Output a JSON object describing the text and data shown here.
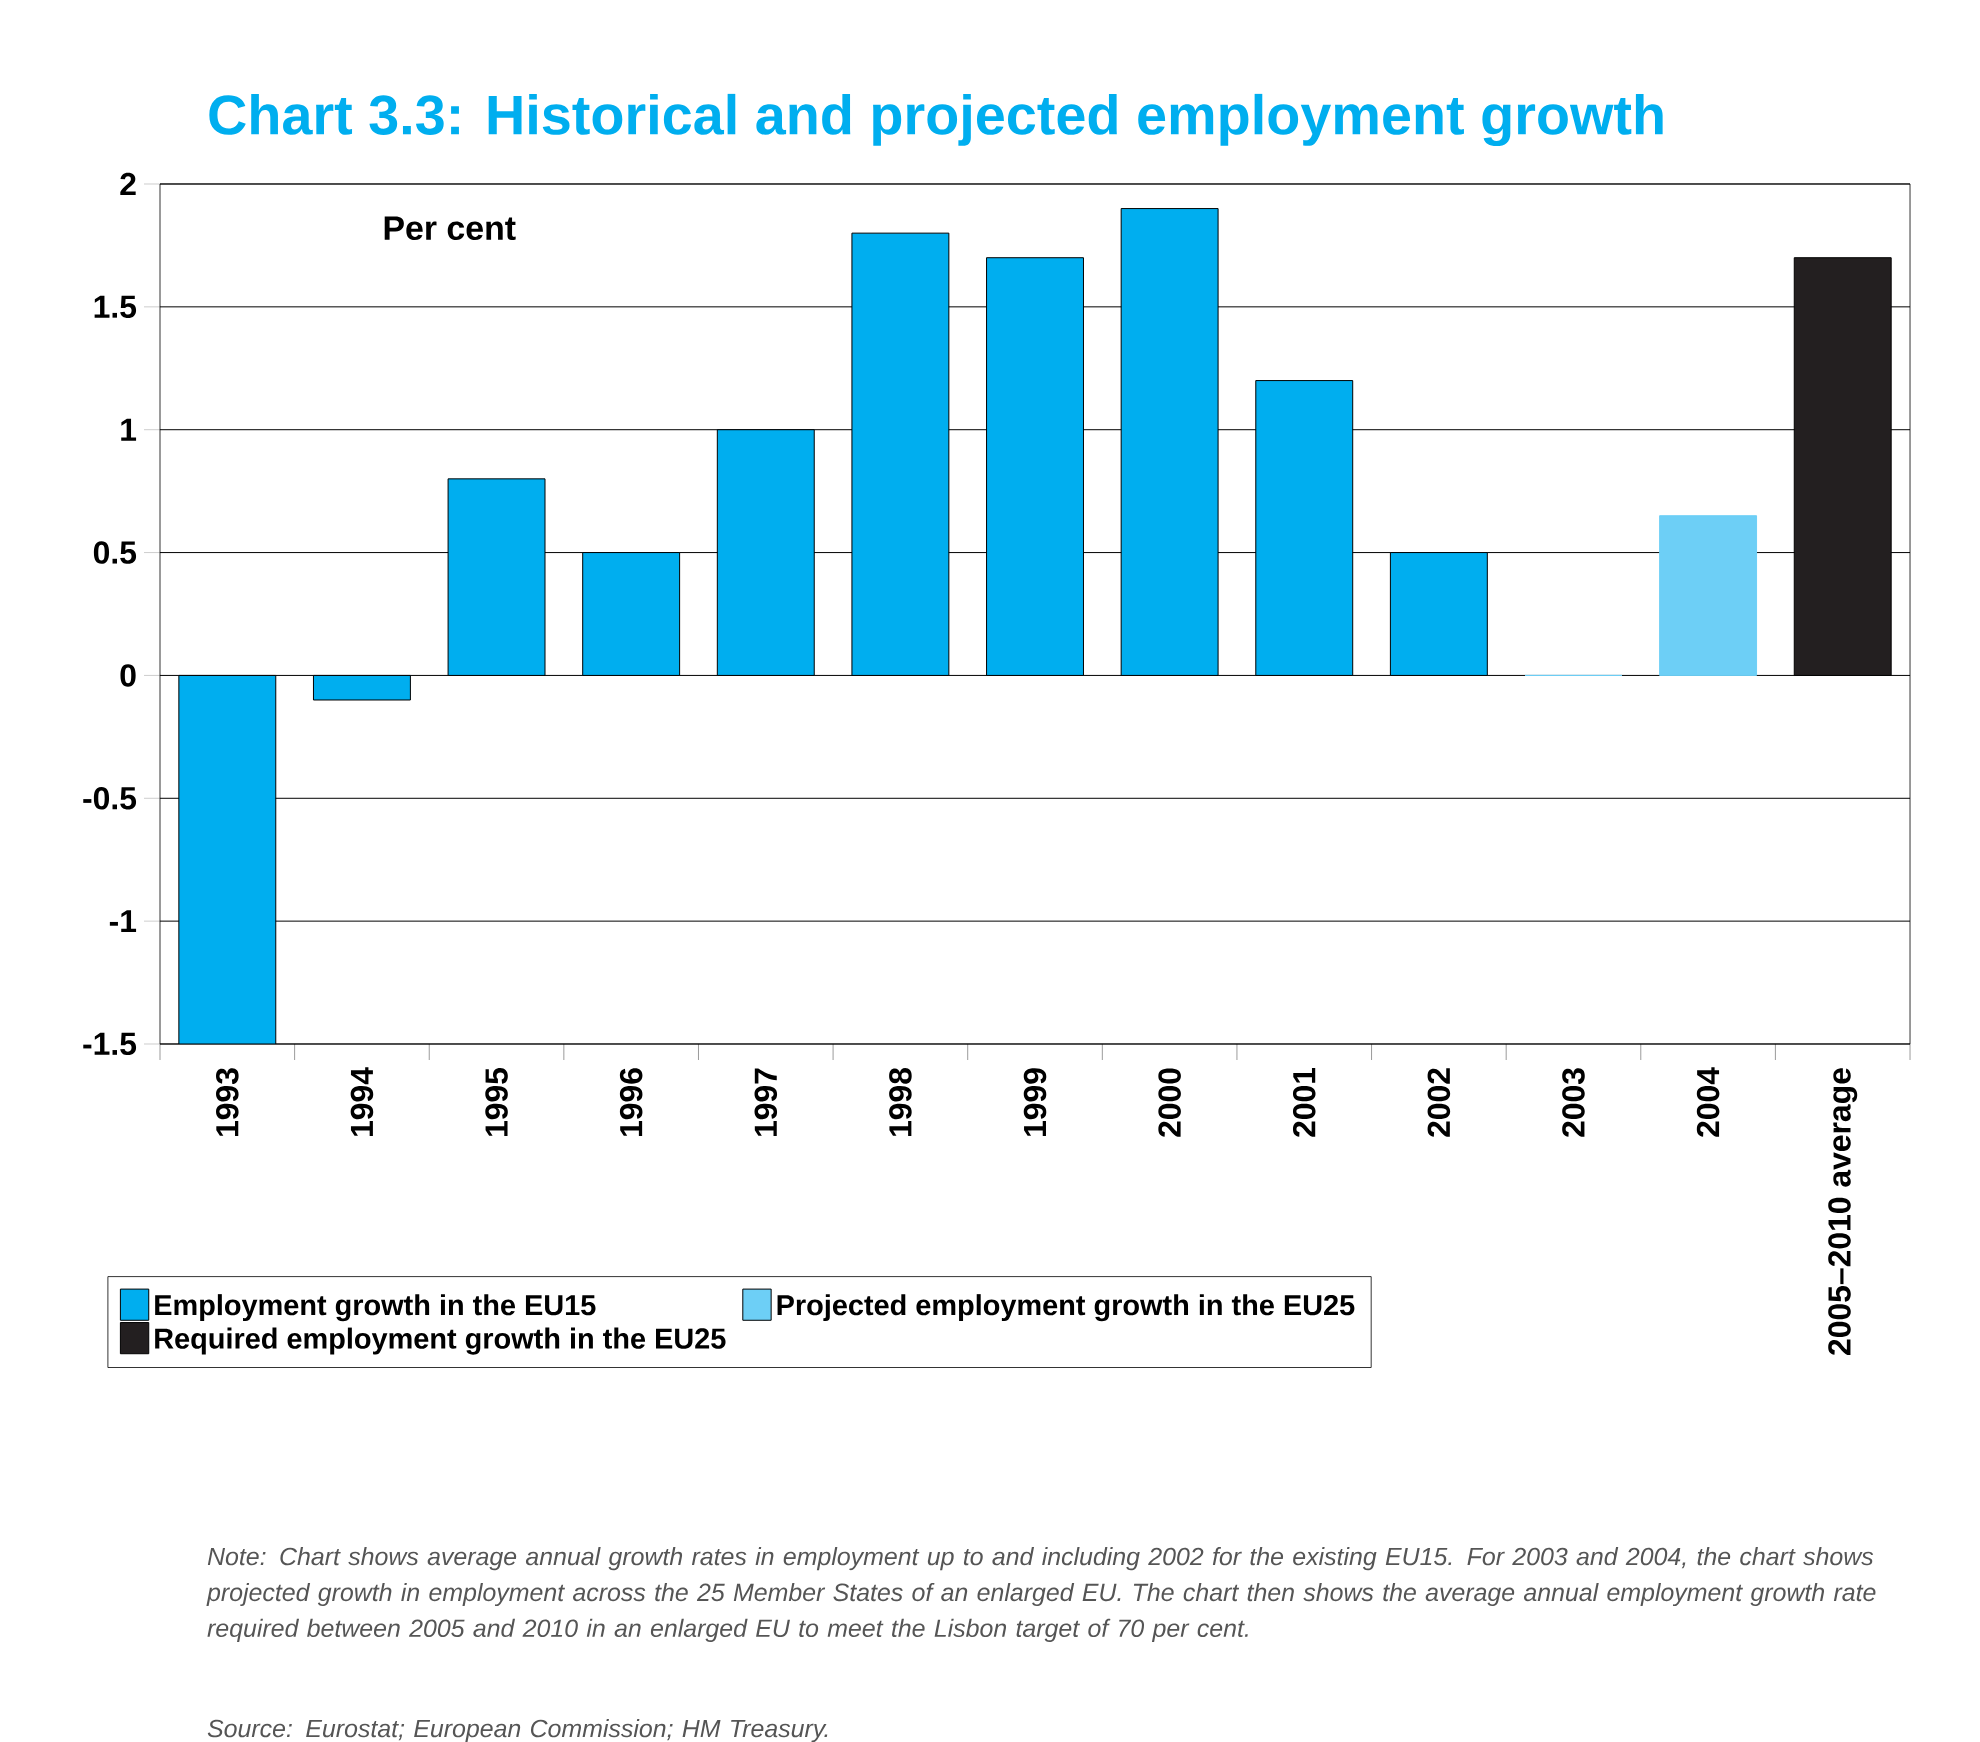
{
  "chart_data": {
    "type": "bar",
    "title": "Chart 3.3: Historical and projected employment growth",
    "ylabel": "Per cent",
    "categories": [
      "1993",
      "1994",
      "1995",
      "1996",
      "1997",
      "1998",
      "1999",
      "2000",
      "2001",
      "2002",
      "2003",
      "2004",
      "2005–2010 average"
    ],
    "series": [
      {
        "name": "Employment growth in the EU15",
        "color": "#00aeef",
        "values": [
          -1.5,
          -0.1,
          0.8,
          0.5,
          1.0,
          1.8,
          1.7,
          1.9,
          1.2,
          0.5,
          null,
          null,
          null
        ]
      },
      {
        "name": "Projected employment growth in the EU25",
        "color": "#6dcff6",
        "values": [
          null,
          null,
          null,
          null,
          null,
          null,
          null,
          null,
          null,
          null,
          0,
          0.65,
          null
        ]
      },
      {
        "name": "Required employment growth in the EU25",
        "color": "#231f20",
        "values": [
          null,
          null,
          null,
          null,
          null,
          null,
          null,
          null,
          null,
          null,
          null,
          null,
          1.7
        ]
      }
    ],
    "ylim": [
      -1.5,
      2
    ],
    "yticks": [
      -1.5,
      -1,
      -0.5,
      0,
      0.5,
      1,
      1.5,
      2
    ],
    "grid": "y",
    "legend": "bottom",
    "annotations": [
      "Note: Chart shows average annual growth rates in employment up to and including 2002 for the existing EU15. For 2003 and 2004, the chart shows projected growth in employment across the 25 Member States of an enlarged EU. The chart then shows the average annual employment growth rate required between 2005 and 2010 in an enlarged EU to meet the Lisbon target of 70 per cent.",
      "Source: Eurostat; European Commission; HM Treasury."
    ]
  }
}
